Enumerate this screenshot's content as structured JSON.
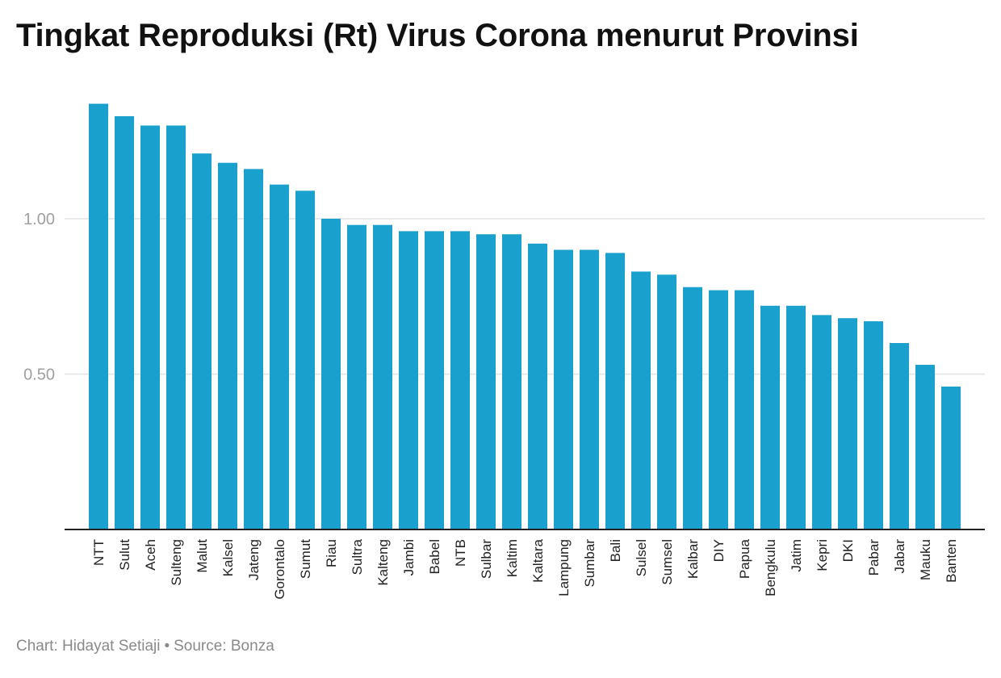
{
  "title": "Tingkat Reproduksi (Rt) Virus Corona menurut Provinsi",
  "footer": {
    "chart_credit": "Chart: Hidayat Setiaji",
    "separator": "•",
    "source": "Source: Bonza"
  },
  "colors": {
    "bar": "#1aa0cc",
    "grid": "#e3e3e3",
    "axis": "#222222",
    "tick_label": "#a0a0a0",
    "category_label": "#222222"
  },
  "chart_data": {
    "type": "bar",
    "title": "Tingkat Reproduksi (Rt) Virus Corona menurut Provinsi",
    "xlabel": "",
    "ylabel": "",
    "ylim": [
      0,
      1.37
    ],
    "yticks": [
      0.5,
      1.0
    ],
    "ytick_labels": [
      "0.50",
      "1.00"
    ],
    "grid": true,
    "legend": "none",
    "categories": [
      "NTT",
      "Sulut",
      "Aceh",
      "Sulteng",
      "Malut",
      "Kalsel",
      "Jateng",
      "Gorontalo",
      "Sumut",
      "Riau",
      "Sultra",
      "Kalteng",
      "Jambi",
      "Babel",
      "NTB",
      "Sulbar",
      "Kaltim",
      "Kaltara",
      "Lampung",
      "Sumbar",
      "Bali",
      "Sulsel",
      "Sumsel",
      "Kalbar",
      "DIY",
      "Papua",
      "Bengkulu",
      "Jatim",
      "Kepri",
      "DKI",
      "Pabar",
      "Jabar",
      "Mauku",
      "Banten"
    ],
    "values": [
      1.37,
      1.33,
      1.3,
      1.3,
      1.21,
      1.18,
      1.16,
      1.11,
      1.09,
      1.0,
      0.98,
      0.98,
      0.96,
      0.96,
      0.96,
      0.95,
      0.95,
      0.92,
      0.9,
      0.9,
      0.89,
      0.83,
      0.82,
      0.78,
      0.77,
      0.77,
      0.72,
      0.72,
      0.69,
      0.68,
      0.67,
      0.6,
      0.53,
      0.46
    ]
  }
}
